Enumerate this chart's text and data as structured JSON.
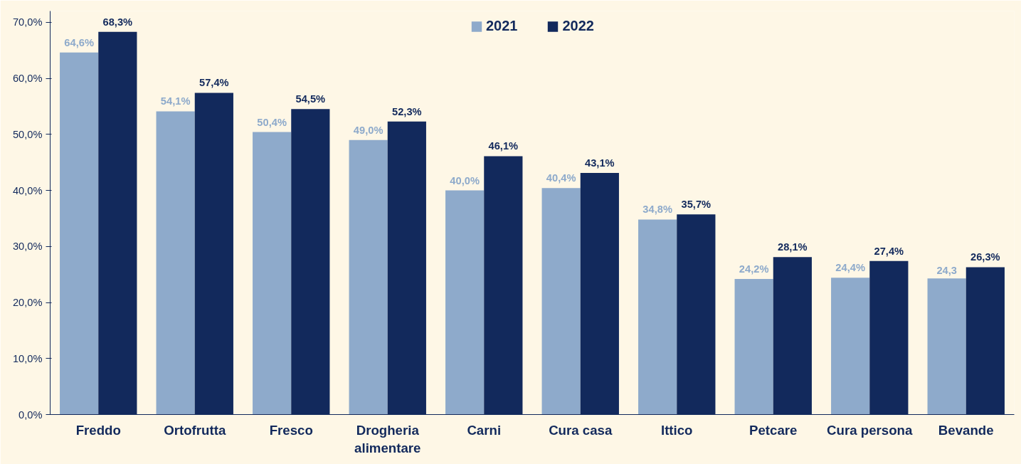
{
  "chart_data": {
    "type": "bar",
    "categories": [
      "Freddo",
      "Ortofrutta",
      "Fresco",
      "Drogheria\nalimentare",
      "Carni",
      "Cura casa",
      "Ittico",
      "Petcare",
      "Cura persona",
      "Bevande"
    ],
    "series": [
      {
        "name": "2021",
        "color": "#8eaacb",
        "values": [
          64.6,
          54.1,
          50.4,
          49.0,
          40.0,
          40.4,
          34.8,
          24.2,
          24.4,
          24.3
        ],
        "value_labels": [
          "64,6%",
          "54,1%",
          "50,4%",
          "49,0%",
          "40,0%",
          "40,4%",
          "34,8%",
          "24,2%",
          "24,4%",
          "24,3"
        ]
      },
      {
        "name": "2022",
        "color": "#12295c",
        "values": [
          68.3,
          57.4,
          54.5,
          52.3,
          46.1,
          43.1,
          35.7,
          28.1,
          27.4,
          26.3
        ],
        "value_labels": [
          "68,3%",
          "57,4%",
          "54,5%",
          "52,3%",
          "46,1%",
          "43,1%",
          "35,7%",
          "28,1%",
          "27,4%",
          "26,3%"
        ]
      }
    ],
    "ylim": [
      0,
      72
    ],
    "yticks": [
      {
        "value": 0,
        "label": "0,0%"
      },
      {
        "value": 10,
        "label": "10,0%"
      },
      {
        "value": 20,
        "label": "20,0%"
      },
      {
        "value": 30,
        "label": "30,0%"
      },
      {
        "value": 40,
        "label": "40,0%"
      },
      {
        "value": 50,
        "label": "50,0%"
      },
      {
        "value": 60,
        "label": "60,0%"
      },
      {
        "value": 70,
        "label": "70,0%"
      }
    ],
    "grid": false,
    "legend": "top"
  }
}
